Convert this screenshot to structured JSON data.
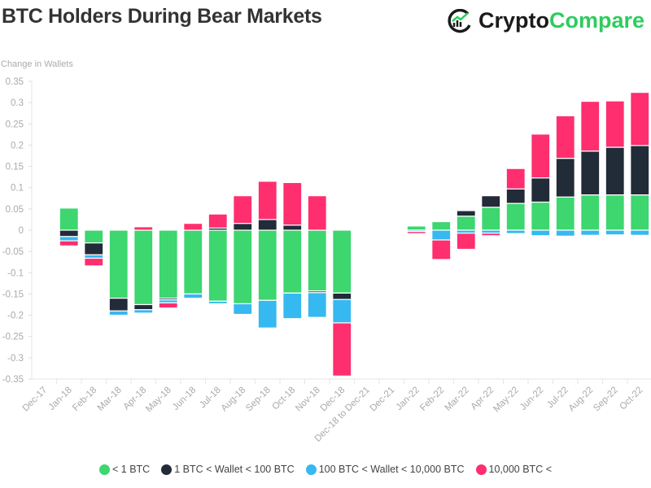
{
  "header": {
    "title": "BTC Holders During Bear Markets",
    "logo_text_1": "Crypto",
    "logo_text_2": "Compare"
  },
  "chart_data": {
    "type": "bar",
    "stacked": true,
    "title": "BTC Holders During Bear Markets",
    "ylabel": "Change in Wallets",
    "xlabel": "",
    "ylim": [
      -0.35,
      0.35
    ],
    "yticks": [
      "0.35",
      "0.3",
      "0.25",
      "0.2",
      "0.15",
      "0.1",
      "0.05",
      "0",
      "-0.05",
      "-0.1",
      "-0.15",
      "-0.2",
      "-0.25",
      "-0.3",
      "-0.35"
    ],
    "grid": false,
    "legend_position": "bottom",
    "categories": [
      "Dec-17",
      "Jan-18",
      "Feb-18",
      "Mar-18",
      "Apr-18",
      "May-18",
      "Jun-18",
      "Jul-18",
      "Aug-18",
      "Sep-18",
      "Oct-18",
      "Nov-18",
      "Dec-18",
      "Dec-18 to Dec-21",
      "Dec-21",
      "Jan-22",
      "Feb-22",
      "Mar-22",
      "Apr-22",
      "May-22",
      "Jun-22",
      "Jul-22",
      "Aug-22",
      "Sep-22",
      "Oct-22"
    ],
    "series": [
      {
        "name": "< 1 BTC",
        "color": "#3dd66f",
        "values": [
          null,
          0.052,
          -0.03,
          -0.16,
          -0.175,
          -0.16,
          -0.15,
          -0.167,
          -0.173,
          -0.165,
          -0.148,
          -0.143,
          -0.148,
          null,
          null,
          0.01,
          0.02,
          0.033,
          0.054,
          0.063,
          0.066,
          0.078,
          0.083,
          0.083,
          0.083
        ]
      },
      {
        "name": "1 BTC < Wallet < 100 BTC",
        "color": "#222b38",
        "values": [
          null,
          -0.015,
          -0.028,
          -0.03,
          -0.012,
          -0.004,
          0,
          0.005,
          0.016,
          0.025,
          0.012,
          -0.004,
          -0.015,
          null,
          null,
          0.002,
          0,
          0.013,
          0.027,
          0.034,
          0.057,
          0.091,
          0.103,
          0.112,
          0.116
        ]
      },
      {
        "name": "100 BTC < Wallet < 10,000 BTC",
        "color": "#36b8f0",
        "values": [
          null,
          -0.01,
          -0.008,
          -0.01,
          -0.008,
          -0.007,
          -0.01,
          -0.006,
          -0.025,
          -0.065,
          -0.06,
          -0.058,
          -0.055,
          null,
          null,
          -0.003,
          -0.023,
          -0.007,
          -0.007,
          -0.008,
          -0.013,
          -0.014,
          -0.012,
          -0.011,
          -0.012
        ]
      },
      {
        "name": "10,000 BTC <",
        "color": "#ff2e6e",
        "values": [
          null,
          -0.012,
          -0.018,
          0,
          0.008,
          -0.012,
          0.016,
          0.033,
          0.065,
          0.09,
          0.1,
          0.081,
          -0.125,
          null,
          null,
          -0.005,
          -0.046,
          -0.038,
          -0.006,
          0.048,
          0.103,
          0.1,
          0.117,
          0.109,
          0.125
        ]
      }
    ]
  }
}
